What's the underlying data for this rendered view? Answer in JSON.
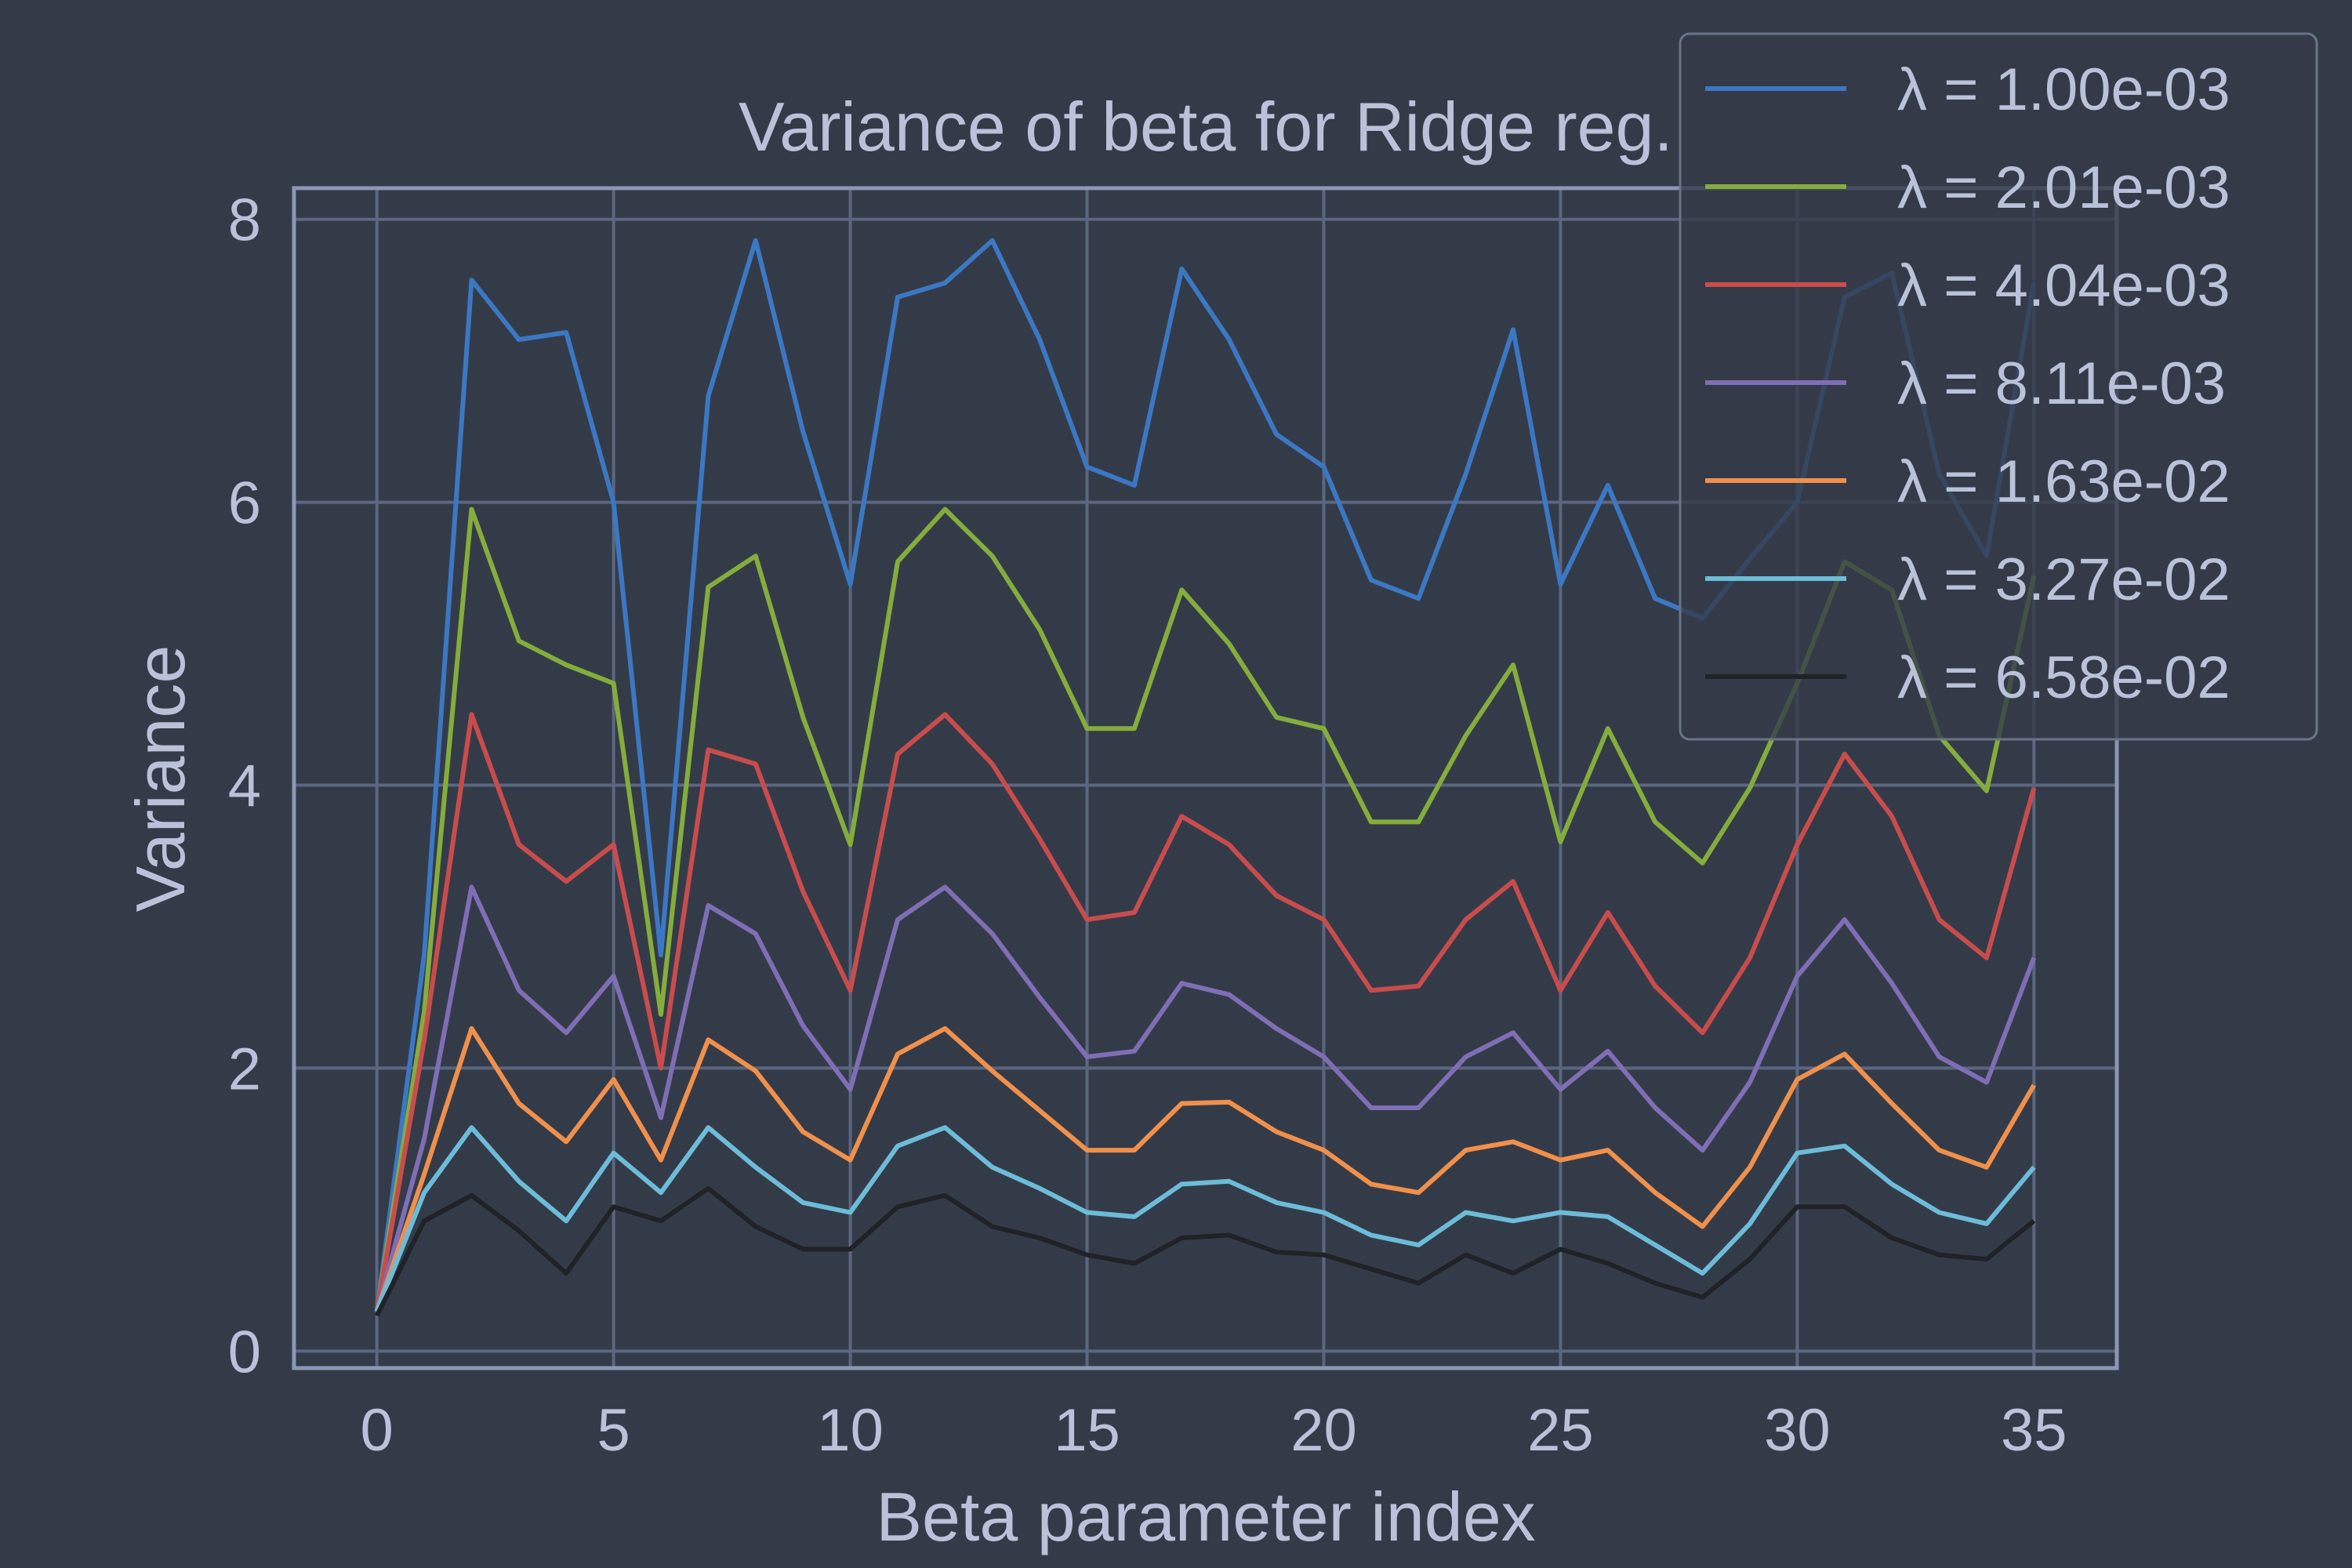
{
  "chart_data": {
    "type": "line",
    "title": "Variance of beta for Ridge reg.",
    "xlabel": "Beta parameter index",
    "ylabel": "Variance",
    "xlim": [
      -1.75,
      36.75
    ],
    "ylim": [
      -0.12,
      8.22
    ],
    "xticks": [
      0,
      5,
      10,
      15,
      20,
      25,
      30,
      35
    ],
    "yticks": [
      0,
      2,
      4,
      6,
      8
    ],
    "grid": true,
    "legend_position": "top-right",
    "x": [
      0,
      1,
      2,
      3,
      4,
      5,
      6,
      7,
      8,
      9,
      10,
      11,
      12,
      13,
      14,
      15,
      16,
      17,
      18,
      19,
      20,
      21,
      22,
      23,
      24,
      25,
      26,
      27,
      28,
      29,
      30,
      31,
      32,
      33,
      34,
      35
    ],
    "series": [
      {
        "name": "λ = 1.00e-03",
        "color": "#3b78c4",
        "values": [
          0.28,
          2.8,
          7.57,
          7.15,
          7.2,
          6.0,
          2.8,
          6.75,
          7.85,
          6.5,
          5.42,
          7.45,
          7.55,
          7.85,
          7.15,
          6.25,
          6.12,
          7.65,
          7.15,
          6.48,
          6.25,
          5.45,
          5.32,
          6.2,
          7.22,
          5.42,
          6.12,
          5.32,
          5.18,
          5.6,
          6.0,
          7.45,
          7.62,
          6.2,
          5.62,
          7.55
        ]
      },
      {
        "name": "λ = 2.01e-03",
        "color": "#84ad3c",
        "values": [
          0.28,
          2.4,
          5.95,
          5.02,
          4.85,
          4.72,
          2.38,
          5.4,
          5.62,
          4.48,
          3.58,
          5.58,
          5.95,
          5.62,
          5.1,
          4.4,
          4.4,
          5.38,
          5.0,
          4.48,
          4.4,
          3.74,
          3.74,
          4.35,
          4.85,
          3.6,
          4.4,
          3.74,
          3.45,
          3.98,
          4.72,
          5.58,
          5.38,
          4.35,
          3.96,
          5.48
        ]
      },
      {
        "name": "λ = 4.04e-03",
        "color": "#c94c4c",
        "values": [
          0.28,
          2.2,
          4.5,
          3.58,
          3.32,
          3.58,
          2.0,
          4.25,
          4.15,
          3.25,
          2.55,
          4.22,
          4.5,
          4.15,
          3.62,
          3.05,
          3.1,
          3.78,
          3.58,
          3.22,
          3.05,
          2.55,
          2.58,
          3.05,
          3.32,
          2.55,
          3.1,
          2.58,
          2.25,
          2.78,
          3.58,
          4.22,
          3.78,
          3.05,
          2.78,
          3.98
        ]
      },
      {
        "name": "λ = 8.11e-03",
        "color": "#7f6eb5",
        "values": [
          0.28,
          1.5,
          3.28,
          2.55,
          2.25,
          2.65,
          1.65,
          3.15,
          2.95,
          2.3,
          1.85,
          3.05,
          3.28,
          2.95,
          2.5,
          2.08,
          2.12,
          2.6,
          2.52,
          2.28,
          2.08,
          1.72,
          1.72,
          2.08,
          2.25,
          1.85,
          2.12,
          1.72,
          1.42,
          1.9,
          2.65,
          3.05,
          2.6,
          2.08,
          1.9,
          2.78
        ]
      },
      {
        "name": "λ = 1.63e-02",
        "color": "#f0904b",
        "values": [
          0.28,
          1.25,
          2.28,
          1.75,
          1.48,
          1.92,
          1.35,
          2.2,
          1.98,
          1.55,
          1.35,
          2.1,
          2.28,
          1.98,
          1.7,
          1.42,
          1.42,
          1.75,
          1.76,
          1.55,
          1.42,
          1.18,
          1.12,
          1.42,
          1.48,
          1.35,
          1.42,
          1.12,
          0.88,
          1.3,
          1.92,
          2.1,
          1.75,
          1.42,
          1.3,
          1.88
        ]
      },
      {
        "name": "λ = 3.27e-02",
        "color": "#6cbcd9",
        "values": [
          0.28,
          1.12,
          1.58,
          1.2,
          0.92,
          1.4,
          1.12,
          1.58,
          1.3,
          1.05,
          0.98,
          1.45,
          1.58,
          1.3,
          1.15,
          0.98,
          0.95,
          1.18,
          1.2,
          1.05,
          0.98,
          0.82,
          0.75,
          0.98,
          0.92,
          0.98,
          0.95,
          0.75,
          0.55,
          0.9,
          1.4,
          1.45,
          1.18,
          0.98,
          0.9,
          1.3
        ]
      },
      {
        "name": "λ = 6.58e-02",
        "color": "#1f2226",
        "values": [
          0.25,
          0.92,
          1.1,
          0.85,
          0.55,
          1.02,
          0.92,
          1.15,
          0.88,
          0.72,
          0.72,
          1.02,
          1.1,
          0.88,
          0.8,
          0.68,
          0.62,
          0.8,
          0.82,
          0.7,
          0.68,
          0.58,
          0.48,
          0.68,
          0.55,
          0.72,
          0.62,
          0.48,
          0.38,
          0.65,
          1.02,
          1.02,
          0.8,
          0.68,
          0.65,
          0.92
        ]
      }
    ]
  }
}
